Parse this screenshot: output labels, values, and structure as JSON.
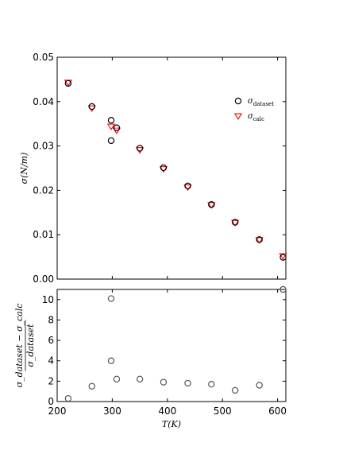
{
  "chart_data": [
    {
      "type": "scatter",
      "panel": "top",
      "ylabel": "σ(N/m)",
      "xlim": [
        200,
        615
      ],
      "ylim": [
        0.0,
        0.05
      ],
      "yticks": [
        "0.00",
        "0.01",
        "0.02",
        "0.03",
        "0.04",
        "0.05"
      ],
      "legend_position": "upper-right",
      "series": [
        {
          "name": "σ_dataset",
          "marker": "circle-open",
          "color": "#000000",
          "points": [
            {
              "x": 220,
              "y": 0.0441
            },
            {
              "x": 263,
              "y": 0.0389
            },
            {
              "x": 298,
              "y": 0.0358
            },
            {
              "x": 298,
              "y": 0.0312
            },
            {
              "x": 308,
              "y": 0.0341
            },
            {
              "x": 350,
              "y": 0.0295
            },
            {
              "x": 393,
              "y": 0.0251
            },
            {
              "x": 437,
              "y": 0.021
            },
            {
              "x": 480,
              "y": 0.0168
            },
            {
              "x": 523,
              "y": 0.0128
            },
            {
              "x": 567,
              "y": 0.0089
            },
            {
              "x": 610,
              "y": 0.0049
            }
          ]
        },
        {
          "name": "σ_calc",
          "marker": "triangle-down-open",
          "color": "#ff0000",
          "points": [
            {
              "x": 220,
              "y": 0.0443
            },
            {
              "x": 263,
              "y": 0.0385
            },
            {
              "x": 298,
              "y": 0.0344
            },
            {
              "x": 308,
              "y": 0.0335
            },
            {
              "x": 350,
              "y": 0.0291
            },
            {
              "x": 393,
              "y": 0.0248
            },
            {
              "x": 437,
              "y": 0.0207
            },
            {
              "x": 480,
              "y": 0.0167
            },
            {
              "x": 523,
              "y": 0.0127
            },
            {
              "x": 567,
              "y": 0.0088
            },
            {
              "x": 610,
              "y": 0.0052
            }
          ]
        }
      ]
    },
    {
      "type": "scatter",
      "panel": "bottom",
      "xlabel": "T(K)",
      "ylabel_numerator": "σ_dataset − σ_calc",
      "ylabel_denominator": "σ_dataset",
      "xlim": [
        200,
        615
      ],
      "ylim": [
        0,
        11
      ],
      "xticks": [
        "200",
        "300",
        "400",
        "500",
        "600"
      ],
      "yticks": [
        "0",
        "2",
        "4",
        "6",
        "8",
        "10"
      ],
      "series": [
        {
          "marker": "circle-open",
          "color": "#555555",
          "points": [
            {
              "x": 220,
              "y": 0.3
            },
            {
              "x": 263,
              "y": 1.5
            },
            {
              "x": 298,
              "y": 10.1
            },
            {
              "x": 298,
              "y": 4.0
            },
            {
              "x": 308,
              "y": 2.2
            },
            {
              "x": 350,
              "y": 2.2
            },
            {
              "x": 393,
              "y": 1.9
            },
            {
              "x": 437,
              "y": 1.8
            },
            {
              "x": 480,
              "y": 1.7
            },
            {
              "x": 523,
              "y": 1.1
            },
            {
              "x": 567,
              "y": 1.6
            },
            {
              "x": 610,
              "y": 11.0
            }
          ]
        }
      ]
    }
  ]
}
